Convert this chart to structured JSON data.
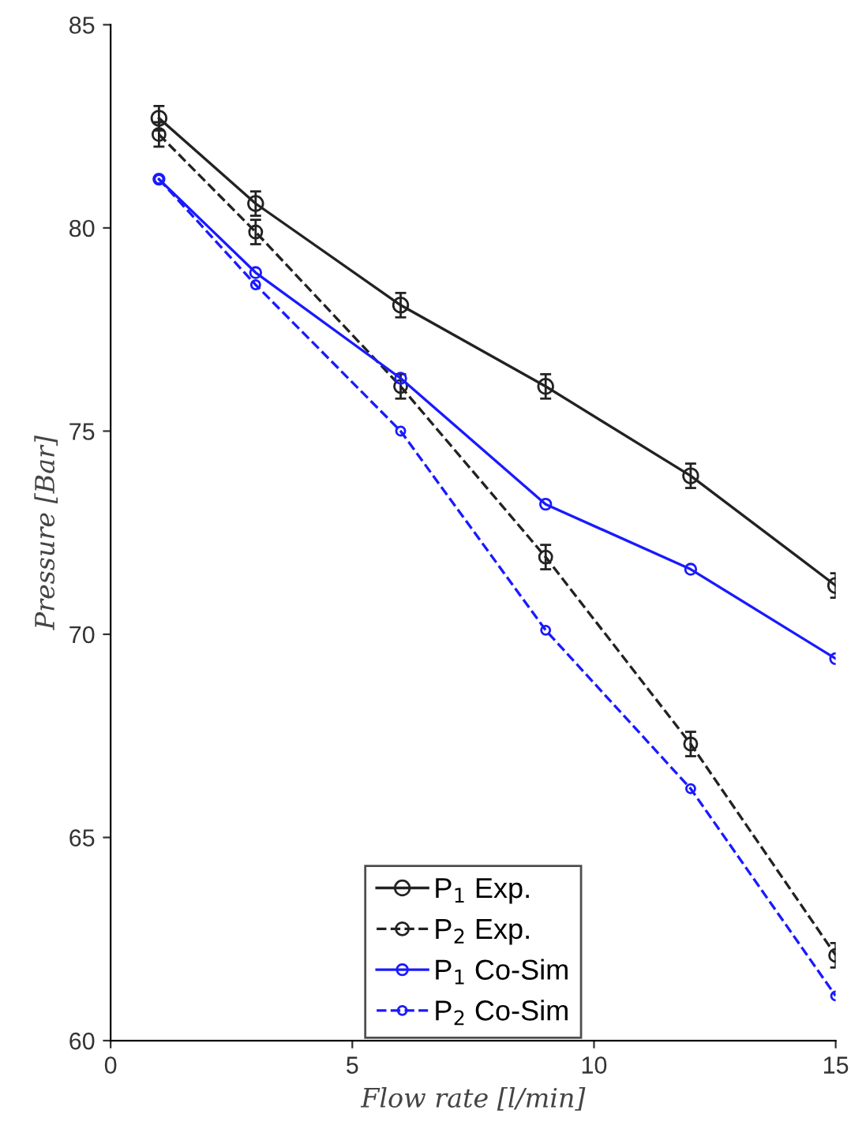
{
  "chart_data": {
    "type": "line",
    "xlabel": "Flow rate [l/min]",
    "ylabel": "Pressure [Bar]",
    "x": [
      1,
      3,
      6,
      9,
      12,
      15
    ],
    "xlim": [
      0,
      15
    ],
    "xticks": [
      0,
      5,
      10,
      15
    ],
    "ylim": [
      60,
      85
    ],
    "yticks": [
      60,
      65,
      70,
      75,
      80,
      85
    ],
    "grid": false,
    "legend": "bottom",
    "marker": "circle",
    "series": [
      {
        "name": "P$_{1}$ Exp.",
        "color": "#222222",
        "line_style": "solid",
        "values": [
          82.7,
          80.6,
          78.1,
          76.1,
          73.9,
          71.2
        ],
        "errors": [
          0.3,
          0.3,
          0.3,
          0.3,
          0.3,
          0.3
        ]
      },
      {
        "name": "P$_{2}$ Exp.",
        "color": "#222222",
        "line_style": "dashed",
        "values": [
          82.3,
          79.9,
          76.1,
          71.9,
          67.3,
          62.1
        ],
        "errors": [
          0.3,
          0.3,
          0.3,
          0.3,
          0.3,
          0.3
        ]
      },
      {
        "name": "P$_{1}$ Co-Sim",
        "color": "#1a1aff",
        "line_style": "solid",
        "values": [
          81.2,
          78.9,
          76.3,
          73.2,
          71.6,
          69.4
        ]
      },
      {
        "name": "P$_{2}$ Co-Sim",
        "color": "#1a1aff",
        "line_style": "dashed",
        "values": [
          81.2,
          78.6,
          75.0,
          70.1,
          66.2,
          61.1
        ]
      }
    ]
  }
}
